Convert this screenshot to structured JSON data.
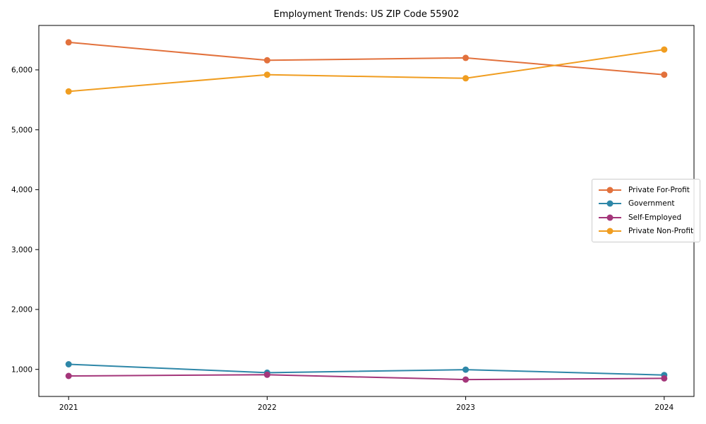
{
  "chart_data": {
    "type": "line",
    "title": "Employment Trends: US ZIP Code 55902",
    "x": [
      2021,
      2022,
      2023,
      2024
    ],
    "x_tick_labels": [
      "2021",
      "2022",
      "2023",
      "2024"
    ],
    "y_tick_values": [
      1000,
      2000,
      3000,
      4000,
      5000,
      6000
    ],
    "y_tick_labels": [
      "1,000",
      "2,000",
      "3,000",
      "4,000",
      "5,000",
      "6,000"
    ],
    "xlim": [
      2020.85,
      2024.15
    ],
    "ylim": [
      548,
      6742
    ],
    "xlabel": "",
    "ylabel": "",
    "grid": false,
    "legend_position": "center right",
    "series": [
      {
        "name": "Private For-Profit",
        "color": "#e2713c",
        "values": [
          6460,
          6160,
          6200,
          5920
        ]
      },
      {
        "name": "Government",
        "color": "#2e87a8",
        "values": [
          1085,
          945,
          995,
          905
        ]
      },
      {
        "name": "Self-Employed",
        "color": "#a4367a",
        "values": [
          890,
          910,
          830,
          850
        ]
      },
      {
        "name": "Private Non-Profit",
        "color": "#f09d20",
        "values": [
          5640,
          5920,
          5860,
          6340
        ]
      }
    ]
  }
}
